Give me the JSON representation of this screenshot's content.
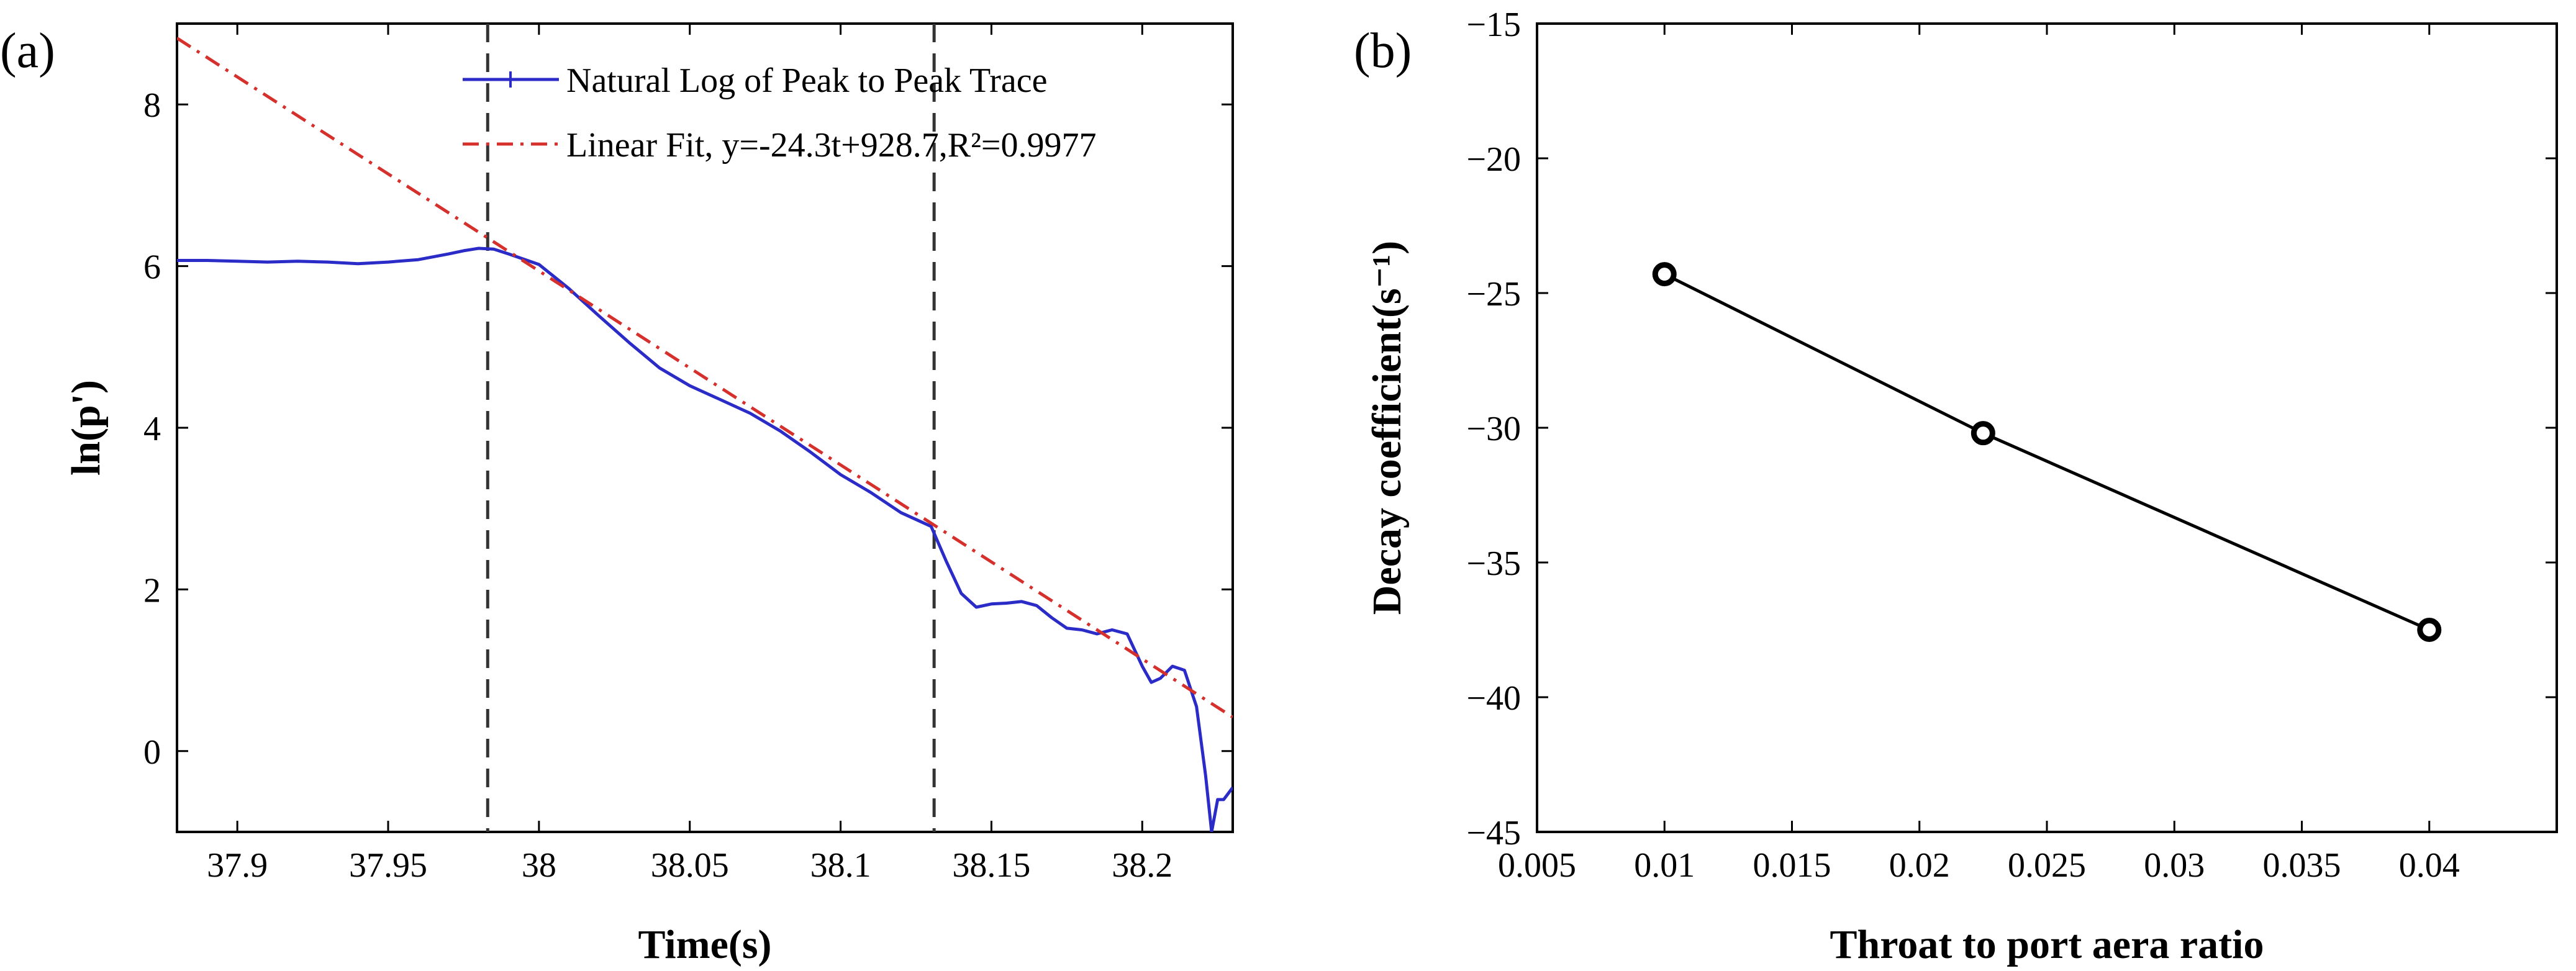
{
  "chart_data": [
    {
      "panel_label": "(a)",
      "type": "line",
      "title": "",
      "xlabel": "Time(s)",
      "ylabel": "ln(p')",
      "xlim": [
        37.88,
        38.23
      ],
      "ylim": [
        -1,
        9
      ],
      "grid": false,
      "xticks": [
        37.9,
        37.95,
        38,
        38.05,
        38.1,
        38.15,
        38.2
      ],
      "xtick_labels": [
        "37.9",
        "37.95",
        "38",
        "38.05",
        "38.1",
        "38.15",
        "38.2"
      ],
      "yticks": [
        0,
        2,
        4,
        6,
        8
      ],
      "ytick_labels": [
        "0",
        "2",
        "4",
        "6",
        "8"
      ],
      "legend_position": "top-right",
      "vlines": [
        37.983,
        38.131
      ],
      "series": [
        {
          "name": "Natural Log of Peak to Peak Trace",
          "color": "#2b2bc8",
          "style": "solid",
          "x": [
            37.88,
            37.89,
            37.9,
            37.91,
            37.92,
            37.93,
            37.94,
            37.95,
            37.96,
            37.97,
            37.975,
            37.98,
            37.985,
            37.99,
            38.0,
            38.01,
            38.02,
            38.03,
            38.04,
            38.05,
            38.06,
            38.07,
            38.08,
            38.09,
            38.1,
            38.11,
            38.12,
            38.13,
            38.135,
            38.14,
            38.145,
            38.15,
            38.155,
            38.16,
            38.165,
            38.17,
            38.175,
            38.18,
            38.185,
            38.19,
            38.195,
            38.2,
            38.203,
            38.206,
            38.21,
            38.214,
            38.218,
            38.221,
            38.223,
            38.225,
            38.227,
            38.23
          ],
          "y": [
            6.07,
            6.07,
            6.06,
            6.05,
            6.06,
            6.05,
            6.03,
            6.05,
            6.08,
            6.15,
            6.19,
            6.22,
            6.21,
            6.15,
            6.02,
            5.72,
            5.38,
            5.05,
            4.74,
            4.52,
            4.35,
            4.18,
            3.96,
            3.7,
            3.42,
            3.2,
            2.95,
            2.78,
            2.35,
            1.95,
            1.78,
            1.82,
            1.83,
            1.85,
            1.8,
            1.65,
            1.52,
            1.5,
            1.45,
            1.5,
            1.45,
            1.05,
            0.85,
            0.9,
            1.05,
            1.0,
            0.55,
            -0.3,
            -1.0,
            -0.6,
            -0.6,
            -0.45
          ]
        },
        {
          "name": "Linear Fit, y=-24.3t+928.7,R²=0.9977",
          "color": "#d6302c",
          "style": "dash-dot",
          "x": [
            37.88,
            38.23
          ],
          "y": [
            8.82,
            0.42
          ]
        }
      ]
    },
    {
      "panel_label": "(b)",
      "type": "line",
      "title": "",
      "xlabel": "Throat to port aera ratio",
      "ylabel": "Decay coefficient(s⁻¹)",
      "xlim": [
        0.005,
        0.045
      ],
      "ylim": [
        -45,
        -15
      ],
      "grid": false,
      "xticks": [
        0.005,
        0.01,
        0.015,
        0.02,
        0.025,
        0.03,
        0.035,
        0.04
      ],
      "xtick_labels": [
        "0.005",
        "0.01",
        "0.015",
        "0.02",
        "0.025",
        "0.03",
        "0.035",
        "0.04"
      ],
      "yticks": [
        -45,
        -40,
        -35,
        -30,
        -25,
        -20,
        -15
      ],
      "ytick_labels": [
        "−45",
        "−40",
        "−35",
        "−30",
        "−25",
        "−20",
        "−15"
      ],
      "series": [
        {
          "name": "Decay coefficient",
          "color": "#000000",
          "style": "solid",
          "marker": "circle",
          "x": [
            0.01,
            0.0225,
            0.04
          ],
          "y": [
            -24.3,
            -30.2,
            -37.5
          ]
        }
      ]
    }
  ]
}
